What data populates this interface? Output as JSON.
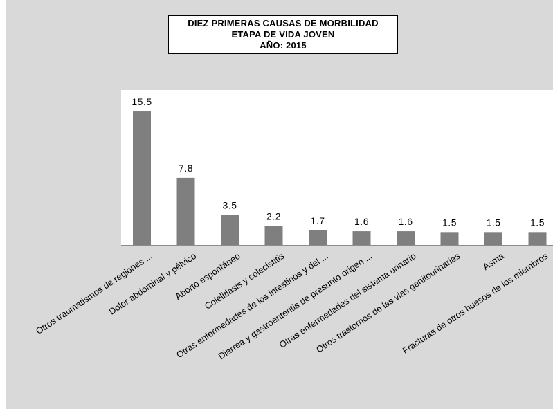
{
  "chart_data": {
    "type": "bar",
    "title_lines": [
      "DIEZ PRIMERAS CAUSAS DE MORBILIDAD",
      "ETAPA DE VIDA JOVEN",
      "AÑO: 2015"
    ],
    "categories": [
      "Otros traumatismos de regiones ...",
      "Dolor abdominal y pélvico",
      "Aborto espontáneo",
      "Colelitiasis y colecistitis",
      "Otras enfermedades de los intestinos y del ...",
      "Diarrea y gastroenteritis de presunto origen ...",
      "Otras enfermedades del sistema urinario",
      "Otros trastornos de las vias genitourinarias",
      "Asma",
      "Fracturas de otros huesos de los miembros"
    ],
    "values": [
      15.5,
      7.8,
      3.5,
      2.2,
      1.7,
      1.6,
      1.6,
      1.5,
      1.5,
      1.5
    ],
    "data_labels": [
      "15.5",
      "7.8",
      "3.5",
      "2.2",
      "1.7",
      "1.6",
      "1.6",
      "1.5",
      "1.5",
      "1.5"
    ],
    "ylim": [
      0,
      16
    ],
    "grid": false,
    "legend": "none",
    "bar_color": "#7f7f7f",
    "plot_background": "#ffffff",
    "chart_background": "#d9d9d9"
  }
}
